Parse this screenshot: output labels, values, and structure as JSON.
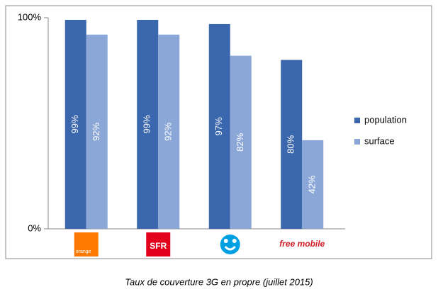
{
  "chart_data": {
    "type": "bar",
    "caption": "Taux de couverture 3G en propre (juillet 2015)",
    "categories": [
      "orange",
      "SFR",
      null,
      "free mobile"
    ],
    "series": [
      {
        "name": "population",
        "color": "#3a67ae",
        "values": [
          99,
          99,
          97,
          80
        ],
        "value_labels": [
          "99%",
          "99%",
          "97%",
          "80%"
        ]
      },
      {
        "name": "surface",
        "color": "#8ba7d8",
        "values": [
          92,
          92,
          82,
          42
        ],
        "value_labels": [
          "92%",
          "92%",
          "82%",
          "42%"
        ]
      }
    ],
    "ylim": [
      0,
      100
    ],
    "yticks": [
      {
        "value": 0,
        "label": "0%"
      },
      {
        "value": 100,
        "label": "100%"
      }
    ],
    "grid": false,
    "legend": "right"
  }
}
